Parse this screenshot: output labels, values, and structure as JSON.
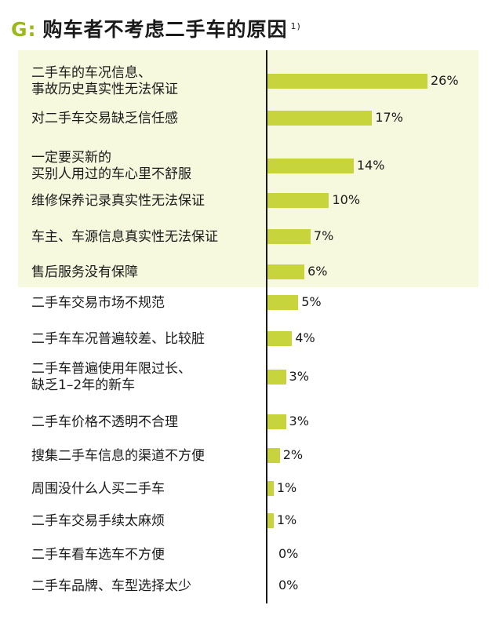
{
  "header": {
    "prefix": "G:",
    "title": "购车者不考虑二手车的原因",
    "footnote": "1)"
  },
  "colors": {
    "accent": "#9cb81a",
    "bar": "#c8d43c",
    "highlight_band": "#f6f9dd",
    "axis": "#1a1a1a"
  },
  "chart_data": {
    "type": "bar",
    "orientation": "horizontal",
    "title": "购车者不考虑二手车的原因",
    "unit": "%",
    "xlim": [
      0,
      26
    ],
    "highlighted_count": 6,
    "categories": [
      [
        "二手车的车况信息、",
        "事故历史真实性无法保证"
      ],
      [
        "对二手车交易缺乏信任感"
      ],
      [
        "一定要买新的",
        "买别人用过的车心里不舒服"
      ],
      [
        "维修保养记录真实性无法保证"
      ],
      [
        "车主、车源信息真实性无法保证"
      ],
      [
        "售后服务没有保障"
      ],
      [
        "二手车交易市场不规范"
      ],
      [
        "二手车车况普遍较差、比较脏"
      ],
      [
        "二手车普遍使用年限过长、",
        "缺乏1–2年的新车"
      ],
      [
        "二手车价格不透明不合理"
      ],
      [
        "搜集二手车信息的渠道不方便"
      ],
      [
        "周围没什么人买二手车"
      ],
      [
        "二手车交易手续太麻烦"
      ],
      [
        "二手车看车选车不方便"
      ],
      [
        "二手车品牌、车型选择太少"
      ]
    ],
    "values": [
      26,
      17,
      14,
      10,
      7,
      6,
      5,
      4,
      3,
      3,
      2,
      1,
      1,
      0,
      0
    ],
    "value_labels": [
      "26%",
      "17%",
      "14%",
      "10%",
      "7%",
      "6%",
      "5%",
      "4%",
      "3%",
      "3%",
      "2%",
      "1%",
      "1%",
      "0%",
      "0%"
    ]
  }
}
